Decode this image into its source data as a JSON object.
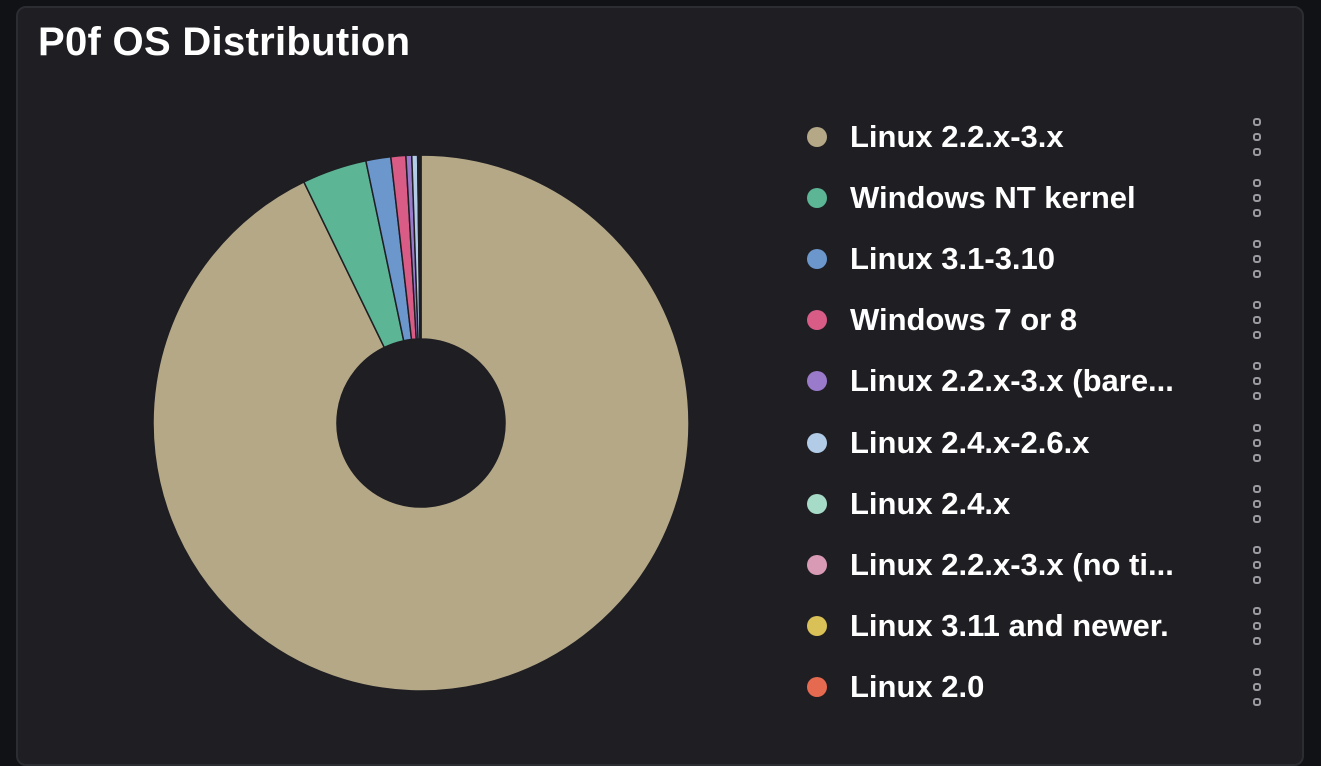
{
  "panel": {
    "title": "P0f OS Distribution"
  },
  "chart_data": {
    "type": "pie",
    "donut": true,
    "title": "P0f OS Distribution",
    "legend_placement": "right",
    "background_color": "#1e1e23",
    "categories": [
      "Linux 2.2.x-3.x",
      "Windows NT kernel",
      "Linux 3.1-3.10",
      "Windows 7 or 8",
      "Linux 2.2.x-3.x (bare...",
      "Linux 2.4.x-2.6.x",
      "Linux 2.4.x",
      "Linux 2.2.x-3.x (no ti...",
      "Linux 3.11 and newer.",
      "Linux 2.0"
    ],
    "values": [
      92.8,
      3.9,
      1.5,
      0.9,
      0.35,
      0.35,
      0.08,
      0.05,
      0.04,
      0.03
    ],
    "colors": [
      "#b5a887",
      "#5cb594",
      "#6b97cc",
      "#d95c87",
      "#9a7acb",
      "#b2cbe6",
      "#a6dcc7",
      "#d99ab5",
      "#d9c157",
      "#e66a4f"
    ]
  }
}
